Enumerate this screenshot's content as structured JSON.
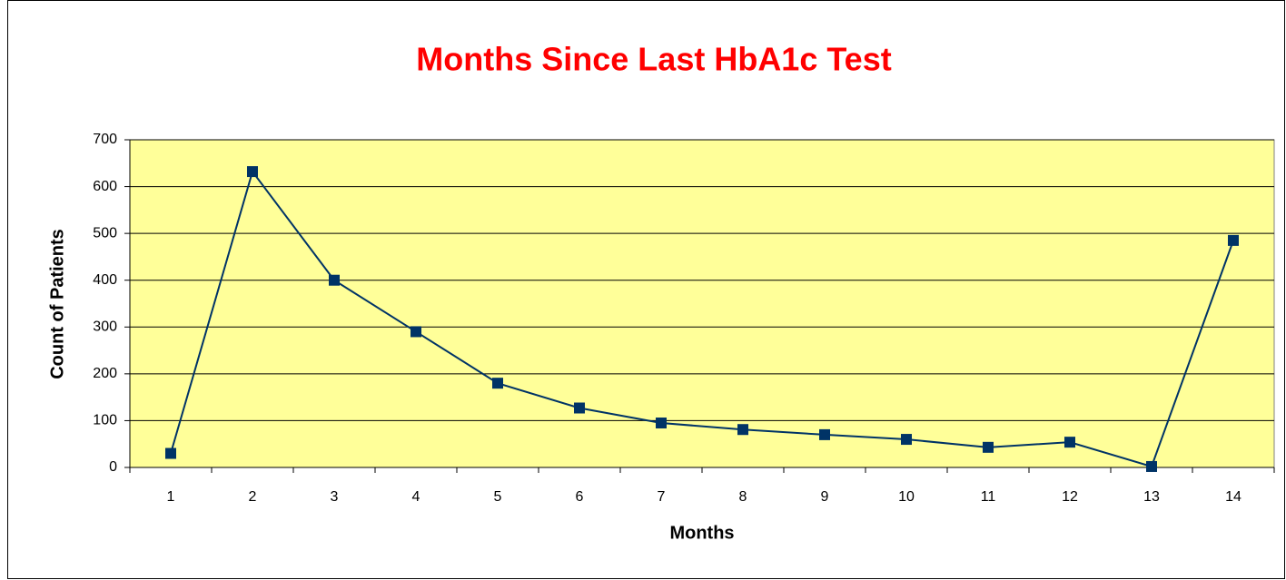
{
  "chart_data": {
    "type": "line",
    "title": "Months Since Last HbA1c Test",
    "x_label": "Months",
    "y_label": "Count of Patients",
    "categories": [
      "1",
      "2",
      "3",
      "4",
      "5",
      "6",
      "7",
      "8",
      "9",
      "10",
      "11",
      "12",
      "13",
      "14"
    ],
    "series": [
      {
        "name": "Count of Patients",
        "color": "#003366",
        "values": [
          30,
          632,
          400,
          290,
          180,
          127,
          95,
          81,
          70,
          60,
          43,
          54,
          2,
          485
        ]
      }
    ],
    "ylim": [
      0,
      700
    ],
    "yticks": [
      0,
      100,
      200,
      300,
      400,
      500,
      600,
      700
    ],
    "grid": true,
    "plot_background": "#ffff99"
  }
}
